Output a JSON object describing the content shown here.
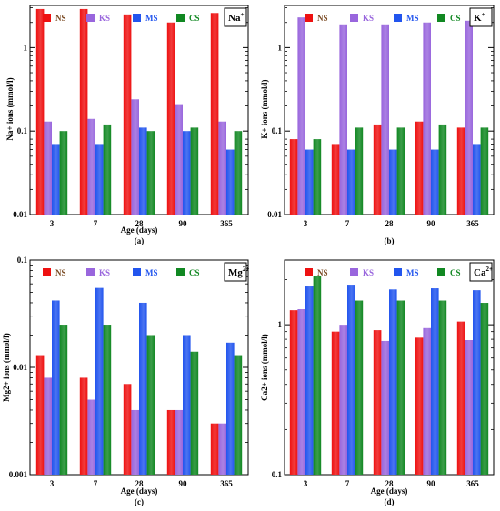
{
  "colors": {
    "NS": "#ee1111",
    "KS": "#9966dd",
    "MS": "#2255ee",
    "CS": "#118822"
  },
  "chart_data": [
    {
      "type": "bar",
      "panel": "(a)",
      "ion_label": "Na",
      "ion_charge": "+",
      "ylabel": "Na+ ions (mmol/l)",
      "xlabel": "Age (days)",
      "yscale": "log",
      "ylim": [
        0.01,
        3.2
      ],
      "yticks": [
        0.01,
        0.1,
        1
      ],
      "ytick_labels": [
        "0.01",
        "0.1",
        "1"
      ],
      "categories": [
        "3",
        "7",
        "28",
        "90",
        "365"
      ],
      "legend": [
        "NS",
        "KS",
        "MS",
        "CS"
      ],
      "series": [
        {
          "name": "NS",
          "values": [
            2.9,
            2.9,
            2.5,
            2.0,
            2.6
          ]
        },
        {
          "name": "KS",
          "values": [
            0.13,
            0.14,
            0.24,
            0.21,
            0.13
          ]
        },
        {
          "name": "MS",
          "values": [
            0.07,
            0.07,
            0.11,
            0.1,
            0.06
          ]
        },
        {
          "name": "CS",
          "values": [
            0.1,
            0.12,
            0.1,
            0.11,
            0.1
          ]
        }
      ]
    },
    {
      "type": "bar",
      "panel": "(b)",
      "ion_label": "K",
      "ion_charge": "+",
      "ylabel": "K+ ions (mmol/l)",
      "xlabel": "",
      "yscale": "log",
      "ylim": [
        0.01,
        3.2
      ],
      "yticks": [
        0.01,
        0.1,
        1
      ],
      "ytick_labels": [
        "0.01",
        "0.1",
        "1"
      ],
      "categories": [
        "3",
        "7",
        "28",
        "90",
        "365"
      ],
      "legend": [
        "NS",
        "KS",
        "MS",
        "CS"
      ],
      "series": [
        {
          "name": "NS",
          "values": [
            0.08,
            0.07,
            0.12,
            0.13,
            0.11
          ]
        },
        {
          "name": "KS",
          "values": [
            2.3,
            1.9,
            1.9,
            2.0,
            2.1
          ]
        },
        {
          "name": "MS",
          "values": [
            0.06,
            0.06,
            0.06,
            0.06,
            0.07
          ]
        },
        {
          "name": "CS",
          "values": [
            0.08,
            0.11,
            0.11,
            0.12,
            0.11
          ]
        }
      ]
    },
    {
      "type": "bar",
      "panel": "(c)",
      "ion_label": "Mg",
      "ion_charge": "2+",
      "ylabel": "Mg2+ ions (mmol/l)",
      "xlabel": "Age (days)",
      "yscale": "log",
      "ylim": [
        0.001,
        0.1
      ],
      "yticks": [
        0.001,
        0.01,
        0.1
      ],
      "ytick_labels": [
        "0.001",
        "0.01",
        "0.1"
      ],
      "categories": [
        "3",
        "7",
        "28",
        "90",
        "365"
      ],
      "legend": [
        "NS",
        "KS",
        "MS",
        "CS"
      ],
      "series": [
        {
          "name": "NS",
          "values": [
            0.013,
            0.008,
            0.007,
            0.004,
            0.003
          ]
        },
        {
          "name": "KS",
          "values": [
            0.008,
            0.005,
            0.004,
            0.004,
            0.003
          ]
        },
        {
          "name": "MS",
          "values": [
            0.042,
            0.055,
            0.04,
            0.02,
            0.017
          ]
        },
        {
          "name": "CS",
          "values": [
            0.025,
            0.025,
            0.02,
            0.014,
            0.013
          ]
        }
      ]
    },
    {
      "type": "bar",
      "panel": "(d)",
      "ion_label": "Ca",
      "ion_charge": "2+",
      "ylabel": "Ca2+ ions (mmol/l)",
      "xlabel": "Age (days)",
      "yscale": "log",
      "ylim": [
        0.1,
        2.7
      ],
      "yticks": [
        0.1,
        1
      ],
      "ytick_labels": [
        "0.1",
        "1"
      ],
      "categories": [
        "3",
        "7",
        "28",
        "90",
        "365"
      ],
      "legend": [
        "NS",
        "KS",
        "MS",
        "CS"
      ],
      "series": [
        {
          "name": "NS",
          "values": [
            1.25,
            0.9,
            0.92,
            0.82,
            1.05
          ]
        },
        {
          "name": "KS",
          "values": [
            1.27,
            1.0,
            0.78,
            0.95,
            0.79
          ]
        },
        {
          "name": "MS",
          "values": [
            1.8,
            1.85,
            1.72,
            1.75,
            1.7
          ]
        },
        {
          "name": "CS",
          "values": [
            2.1,
            1.45,
            1.45,
            1.45,
            1.4
          ]
        }
      ]
    }
  ]
}
